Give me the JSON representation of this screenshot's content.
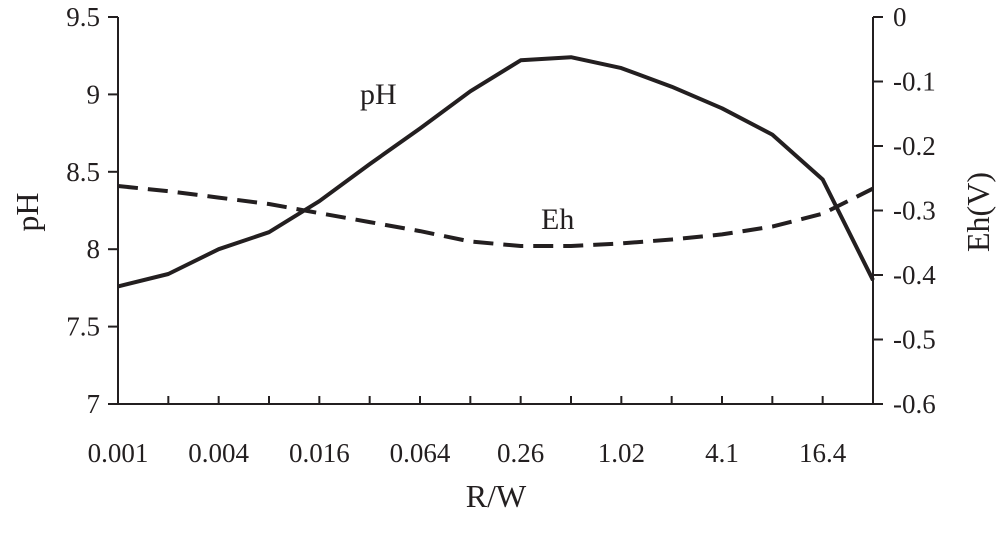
{
  "chart_data": {
    "type": "line",
    "xlabel": "R/W",
    "x_tick_labels": [
      "0.001",
      "0.004",
      "0.016",
      "0.064",
      "0.26",
      "1.02",
      "4.1",
      "16.4"
    ],
    "y_left": {
      "label": "pH",
      "ylim": [
        7,
        9.5
      ],
      "ticks": [
        7,
        7.5,
        8,
        8.5,
        9,
        9.5
      ],
      "tick_labels": [
        "7",
        "7.5",
        "8",
        "8.5",
        "9",
        "9.5"
      ]
    },
    "y_right": {
      "label": "Eh(V)",
      "ylim": [
        -0.6,
        0
      ],
      "ticks": [
        -0.6,
        -0.5,
        -0.4,
        -0.3,
        -0.2,
        -0.1,
        0
      ],
      "tick_labels": [
        "-0.6",
        "-0.5",
        "-0.4",
        "-0.3",
        "-0.2",
        "-0.1",
        "0"
      ]
    },
    "x_index_range": [
      0,
      15
    ],
    "series": [
      {
        "name": "pH",
        "axis": "left",
        "style": "solid",
        "x": [
          0,
          1,
          2,
          3,
          4,
          5,
          6,
          7,
          8,
          9,
          10,
          11,
          12,
          13,
          14,
          15
        ],
        "values": [
          7.76,
          7.84,
          8.0,
          8.11,
          8.31,
          8.55,
          8.78,
          9.02,
          9.22,
          9.24,
          9.17,
          9.05,
          8.91,
          8.74,
          8.45,
          7.8
        ]
      },
      {
        "name": "Eh",
        "axis": "right",
        "style": "dashed",
        "x": [
          0,
          1,
          2,
          3,
          4,
          5,
          6,
          7,
          8,
          9,
          10,
          11,
          12,
          13,
          14,
          15
        ],
        "values": [
          -0.262,
          -0.27,
          -0.28,
          -0.29,
          -0.304,
          -0.318,
          -0.332,
          -0.348,
          -0.355,
          -0.355,
          -0.351,
          -0.345,
          -0.337,
          -0.325,
          -0.305,
          -0.266
        ]
      }
    ],
    "colors": {
      "line": "#231f20",
      "axis": "#231f20"
    },
    "grid": false,
    "legend": "inline-labels"
  }
}
